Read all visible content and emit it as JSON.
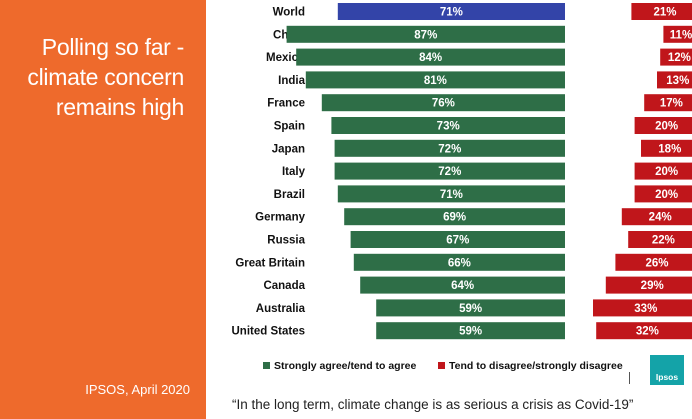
{
  "sidebar": {
    "title": "Polling so far - climate concern remains high",
    "source": "IPSOS, April 2020"
  },
  "caption": "“In the long term, climate change is as serious a crisis as Covid-19”",
  "logo": {
    "text": "Ipsos"
  },
  "colors": {
    "sidebar": "#ee6a2c",
    "agree": "#2e6e47",
    "agree_highlight": "#3344a8",
    "disagree": "#c0161b"
  },
  "chart_data": {
    "type": "bar",
    "orientation": "horizontal",
    "stacking": "diverging",
    "categories": [
      "World",
      "China",
      "Mexico",
      "India",
      "France",
      "Spain",
      "Japan",
      "Italy",
      "Brazil",
      "Germany",
      "Russia",
      "Great Britain",
      "Canada",
      "Australia",
      "United States"
    ],
    "series": [
      {
        "name": "Strongly agree/tend to agree",
        "values": [
          71,
          87,
          84,
          81,
          76,
          73,
          72,
          72,
          71,
          69,
          67,
          66,
          64,
          59,
          59
        ],
        "labels": [
          "71%",
          "87%",
          "84%",
          "81%",
          "76%",
          "73%",
          "72%",
          "72%",
          "71%",
          "69%",
          "67%",
          "66%",
          "64%",
          "59%",
          "59%"
        ]
      },
      {
        "name": "Tend to disagree/strongly disagree",
        "values": [
          21,
          11,
          12,
          13,
          17,
          20,
          18,
          20,
          20,
          24,
          22,
          26,
          29,
          33,
          32
        ],
        "labels": [
          "21%",
          "11%",
          "12%",
          "13%",
          "17%",
          "20%",
          "18%",
          "20%",
          "20%",
          "24%",
          "22%",
          "26%",
          "29%",
          "33%",
          "32%"
        ]
      }
    ],
    "highlight_category": "World",
    "legend": "bottom",
    "grid": false
  }
}
